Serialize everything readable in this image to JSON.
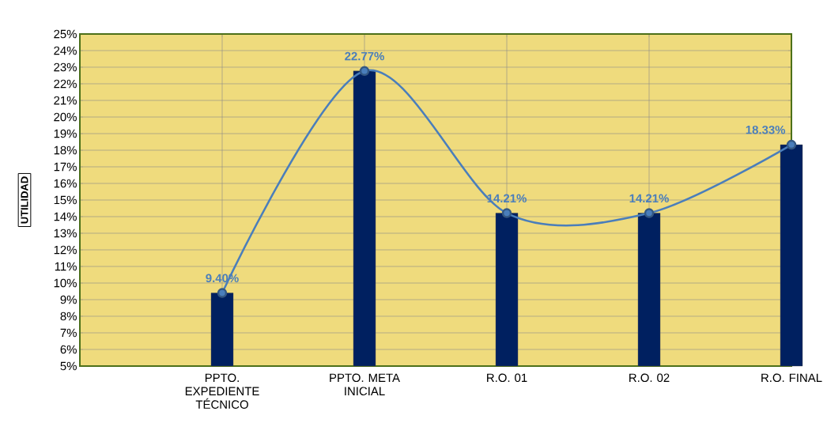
{
  "chart_data": {
    "type": "bar",
    "ylabel": "UTILIDAD",
    "categories": [
      null,
      "PPTO. EXPEDIENTE TÉCNICO",
      "PPTO. META INICIAL",
      "R.O. 01",
      "R.O. 02",
      "R.O. FINAL"
    ],
    "series": [
      {
        "color": "#002060",
        "values": [
          null,
          9.4,
          22.77,
          14.21,
          14.21,
          18.33
        ]
      },
      {
        "type": "line",
        "color": "#4a7ebb",
        "values": [
          null,
          9.4,
          22.77,
          14.21,
          14.21,
          18.33
        ],
        "value_labels": [
          null,
          "9.40%",
          "22.77%",
          "14.21%",
          "14.21%",
          "18.33%"
        ]
      }
    ],
    "ylim": [
      5,
      25
    ],
    "yticks": [
      {
        "value": 5,
        "label": "5%"
      },
      {
        "value": 6,
        "label": "6%"
      },
      {
        "value": 7,
        "label": "7%"
      },
      {
        "value": 8,
        "label": "8%"
      },
      {
        "value": 9,
        "label": "9%"
      },
      {
        "value": 10,
        "label": "10%"
      },
      {
        "value": 11,
        "label": "11%"
      },
      {
        "value": 12,
        "label": "12%"
      },
      {
        "value": 13,
        "label": "13%"
      },
      {
        "value": 14,
        "label": "14%"
      },
      {
        "value": 15,
        "label": "15%"
      },
      {
        "value": 16,
        "label": "16%"
      },
      {
        "value": 17,
        "label": "17%"
      },
      {
        "value": 18,
        "label": "18%"
      },
      {
        "value": 19,
        "label": "19%"
      },
      {
        "value": 20,
        "label": "20%"
      },
      {
        "value": 21,
        "label": "21%"
      },
      {
        "value": 22,
        "label": "22%"
      },
      {
        "value": 23,
        "label": "23%"
      },
      {
        "value": 24,
        "label": "24%"
      },
      {
        "value": 25,
        "label": "25%"
      }
    ],
    "grid": true,
    "marker": "circle",
    "line_style": "solid"
  }
}
